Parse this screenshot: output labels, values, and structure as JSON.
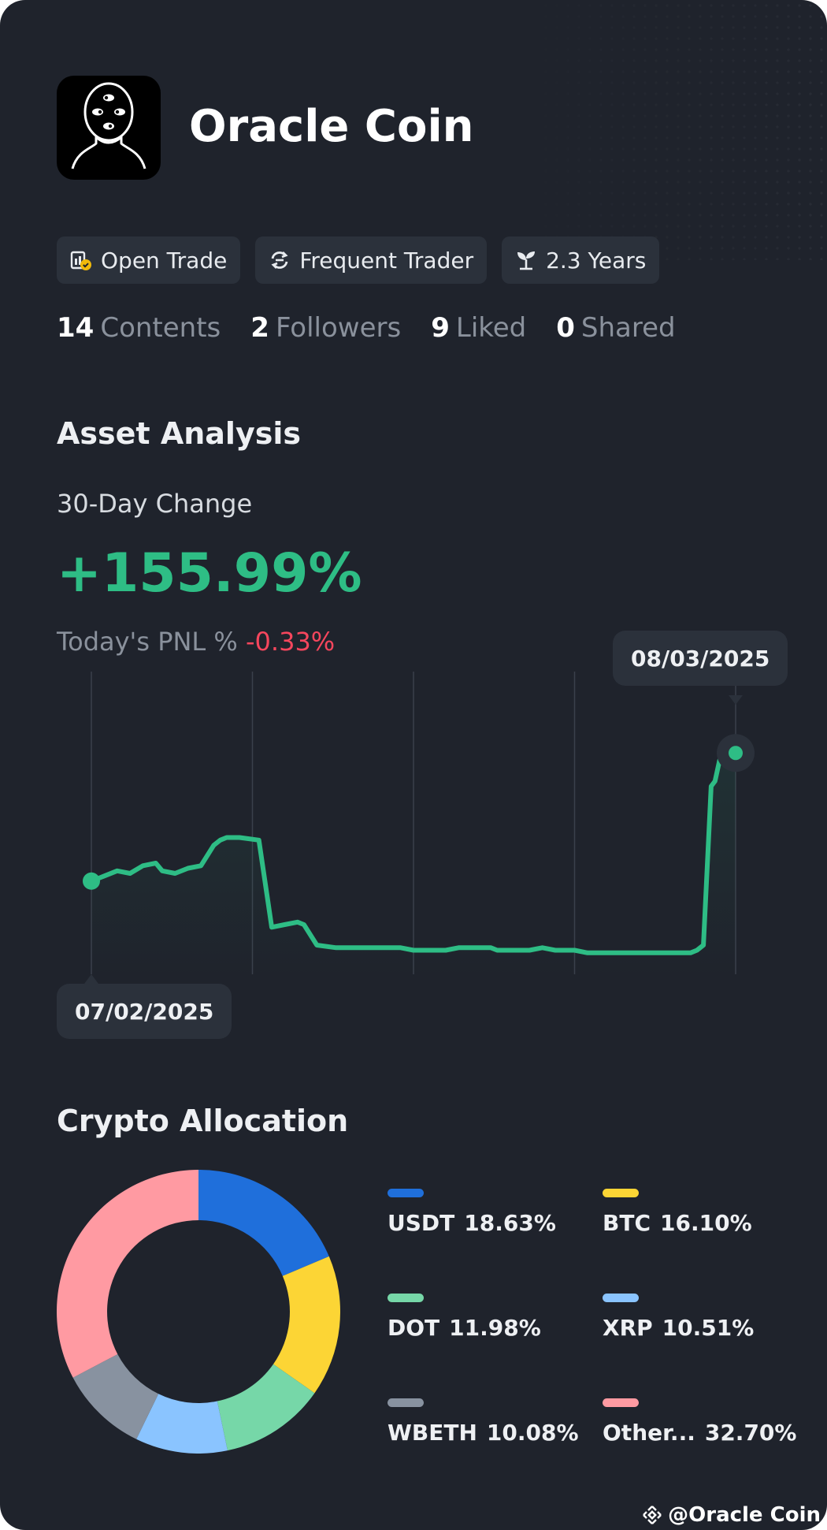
{
  "profile": {
    "name": "Oracle Coin"
  },
  "badges": [
    {
      "label": "Open Trade",
      "icon": "verified-trade-icon"
    },
    {
      "label": "Frequent Trader",
      "icon": "swap-arrows-icon"
    },
    {
      "label": "2.3 Years",
      "icon": "sprout-icon"
    }
  ],
  "stats": [
    {
      "value": "14",
      "label": "Contents"
    },
    {
      "value": "2",
      "label": "Followers"
    },
    {
      "value": "9",
      "label": "Liked"
    },
    {
      "value": "0",
      "label": "Shared"
    }
  ],
  "asset_analysis": {
    "title": "Asset Analysis",
    "change_label": "30-Day Change",
    "change_value": "+155.99%",
    "pnl_label": "Today's PNL %",
    "pnl_value": "-0.33%"
  },
  "chart_data": {
    "type": "line",
    "start_date": "07/02/2025",
    "end_date": "08/03/2025",
    "ylim": [
      0,
      100
    ],
    "values": [
      33,
      35,
      37,
      36,
      39,
      40,
      37,
      36,
      38,
      39,
      47,
      49,
      50,
      50,
      49,
      15,
      16,
      17,
      16,
      8,
      7,
      7,
      7,
      7,
      7,
      6,
      6,
      6,
      7,
      7,
      7,
      6,
      6,
      6,
      7,
      6,
      6,
      5,
      5,
      5,
      5,
      5,
      5,
      5,
      5,
      5,
      5,
      6,
      8,
      70,
      72,
      80,
      82,
      85,
      86,
      84,
      83
    ],
    "x": [
      0,
      0.02,
      0.04,
      0.06,
      0.08,
      0.1,
      0.11,
      0.13,
      0.15,
      0.17,
      0.19,
      0.2,
      0.21,
      0.23,
      0.26,
      0.28,
      0.3,
      0.32,
      0.33,
      0.35,
      0.38,
      0.4,
      0.43,
      0.45,
      0.48,
      0.5,
      0.52,
      0.55,
      0.57,
      0.6,
      0.62,
      0.63,
      0.65,
      0.68,
      0.7,
      0.72,
      0.75,
      0.77,
      0.8,
      0.82,
      0.85,
      0.87,
      0.88,
      0.9,
      0.91,
      0.92,
      0.93,
      0.94,
      0.95,
      0.962,
      0.968,
      0.975,
      0.978,
      0.985,
      0.99,
      0.995,
      1
    ],
    "line_color": "#2ebd85",
    "gridline_count": 5
  },
  "crypto_allocation": {
    "title": "Crypto Allocation",
    "items": [
      {
        "name": "USDT",
        "pct": "18.63%",
        "value": 18.63,
        "color": "#1f6fdb"
      },
      {
        "name": "BTC",
        "pct": "16.10%",
        "value": 16.1,
        "color": "#fcd535"
      },
      {
        "name": "DOT",
        "pct": "11.98%",
        "value": 11.98,
        "color": "#76d7a8"
      },
      {
        "name": "XRP",
        "pct": "10.51%",
        "value": 10.51,
        "color": "#8ac4ff"
      },
      {
        "name": "WBETH",
        "pct": "10.08%",
        "value": 10.08,
        "color": "#8892a0"
      },
      {
        "name": "Other...",
        "pct": "32.70%",
        "value": 32.7,
        "color": "#ff9aa2"
      }
    ]
  },
  "footer": {
    "handle": "@Oracle Coin",
    "icon": "binance-logo-icon"
  }
}
